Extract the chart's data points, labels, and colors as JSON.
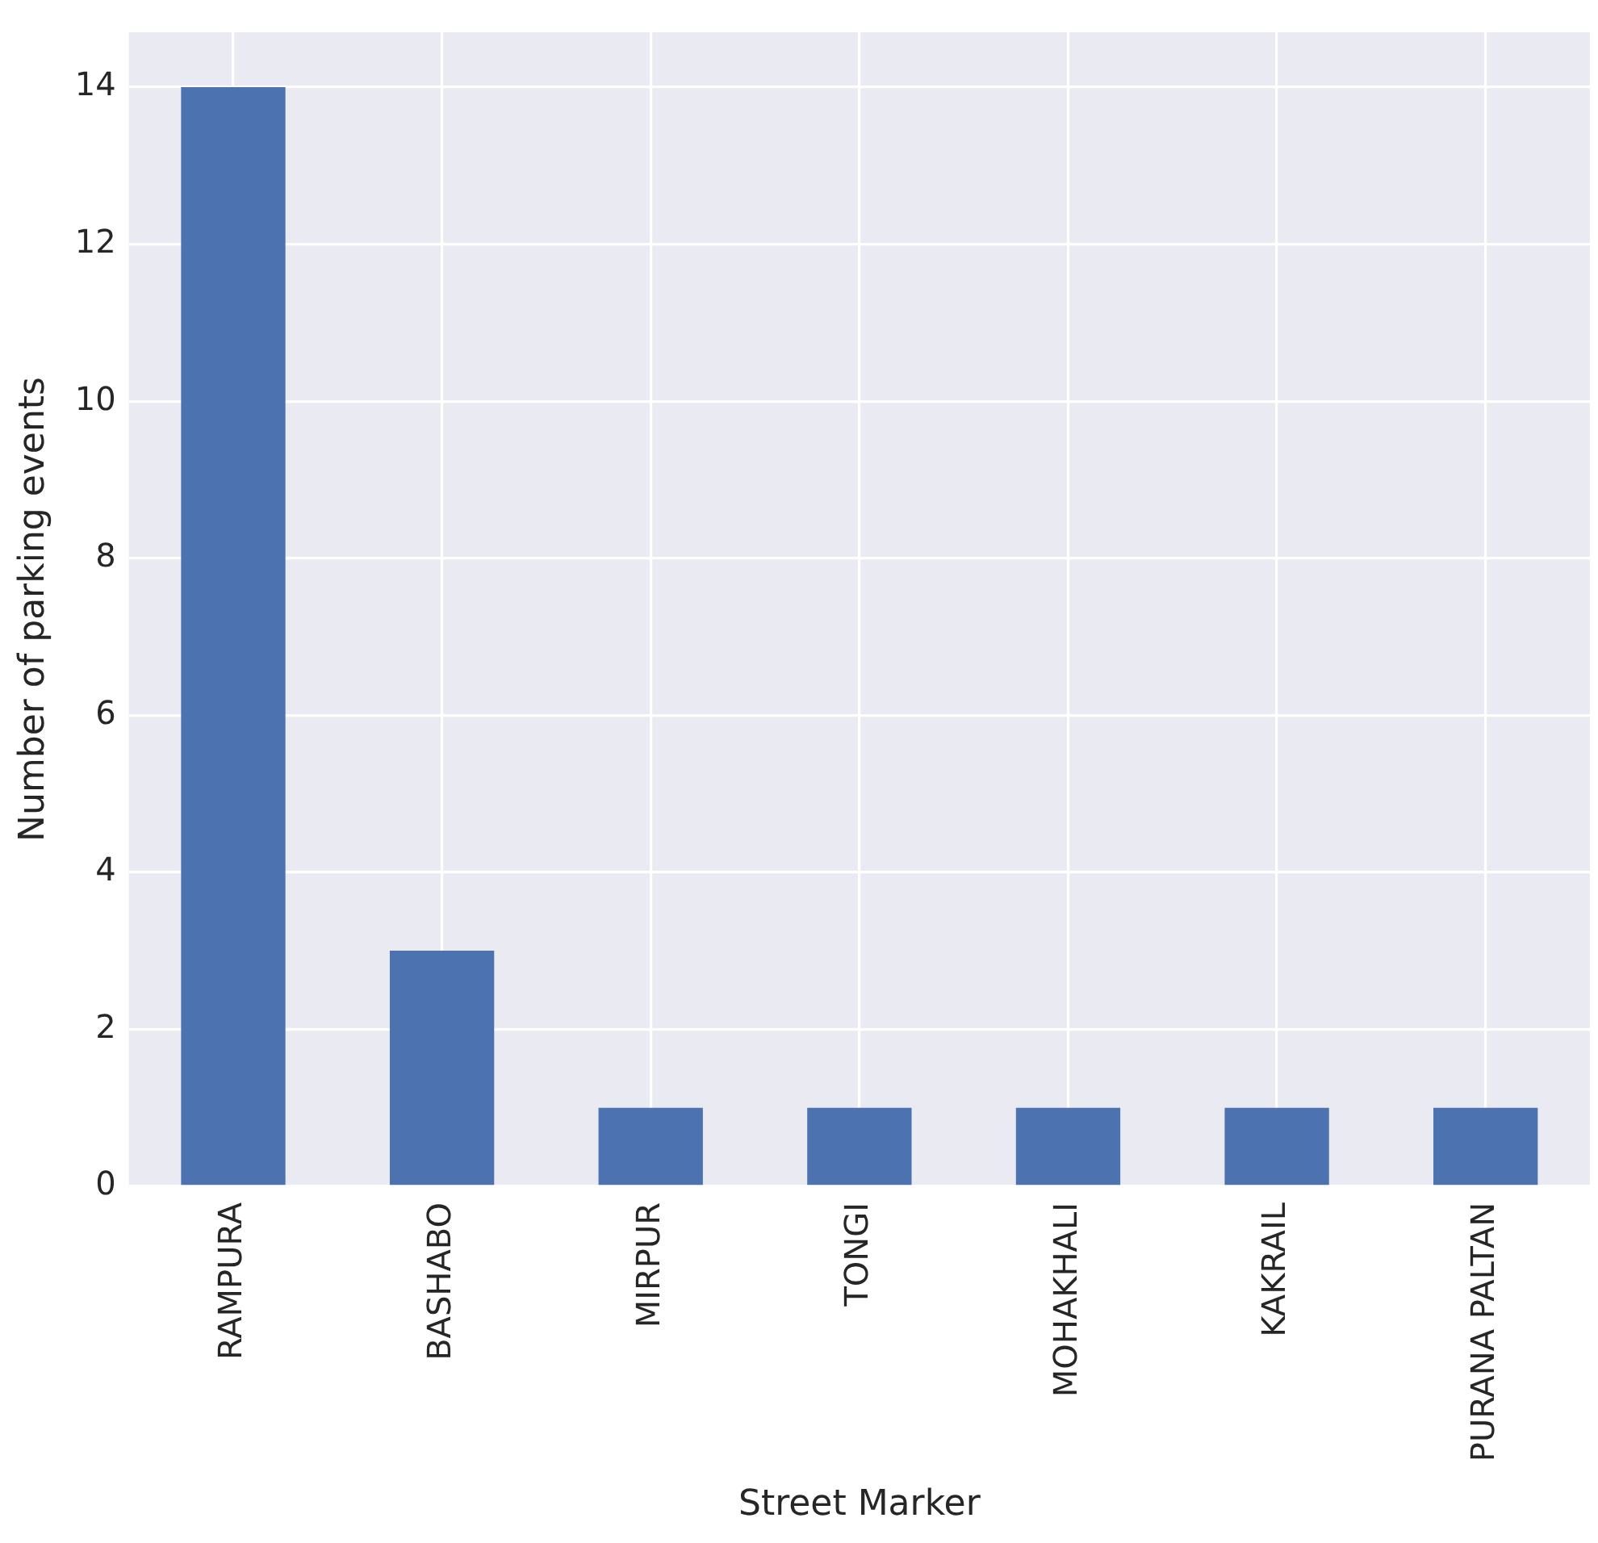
{
  "chart_data": {
    "type": "bar",
    "xlabel": "Street Marker",
    "ylabel": "Number of parking events",
    "categories": [
      "RAMPURA",
      "BASHABO",
      "MIRPUR",
      "TONGI",
      "MOHAKHALI",
      "KAKRAIL",
      "PURANA PALTAN"
    ],
    "values": [
      14,
      3,
      1,
      1,
      1,
      1,
      1
    ],
    "color": "#4c72b0",
    "ylim": [
      0,
      14.7
    ],
    "yticks": [
      0,
      2,
      4,
      6,
      8,
      10,
      12,
      14
    ],
    "grid": true,
    "legend": false
  }
}
